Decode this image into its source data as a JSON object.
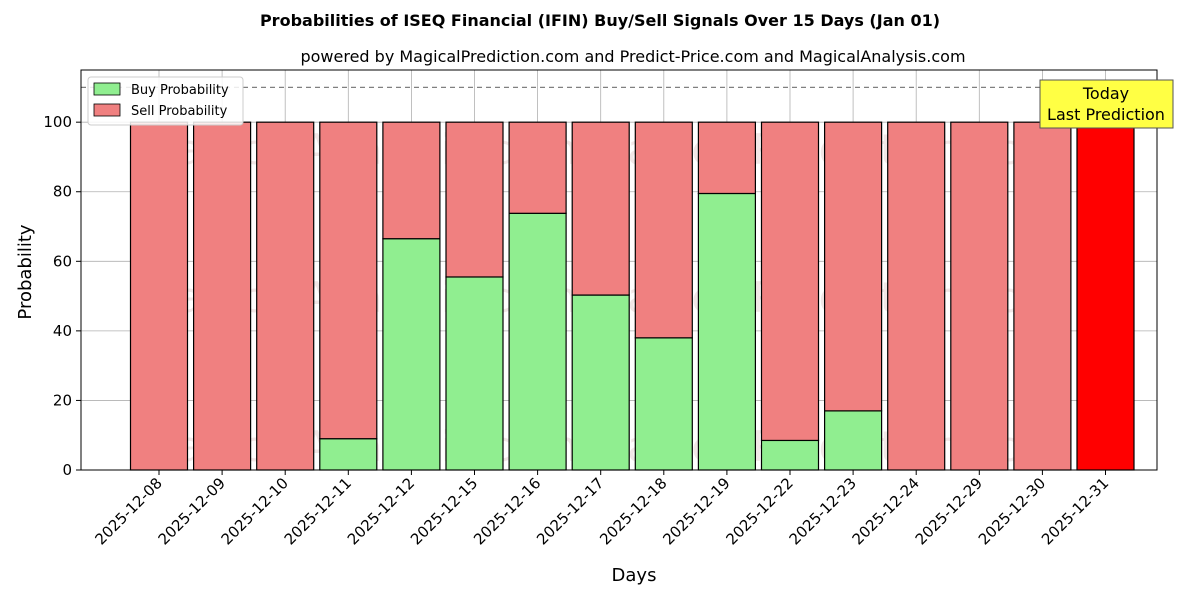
{
  "chart_data": {
    "type": "bar",
    "title": "Probabilities of ISEQ Financial (IFIN) Buy/Sell Signals Over 15 Days (Jan 01)",
    "subtitle": "powered by MagicalPrediction.com and Predict-Price.com and MagicalAnalysis.com",
    "xlabel": "Days",
    "ylabel": "Probability",
    "ylim": [
      0,
      115
    ],
    "yticks": [
      0,
      20,
      40,
      60,
      80,
      100
    ],
    "categories": [
      "2025-12-08",
      "2025-12-09",
      "2025-12-10",
      "2025-12-11",
      "2025-12-12",
      "2025-12-15",
      "2025-12-16",
      "2025-12-17",
      "2025-12-18",
      "2025-12-19",
      "2025-12-22",
      "2025-12-23",
      "2025-12-24",
      "2025-12-29",
      "2025-12-30",
      "2025-12-31"
    ],
    "series": [
      {
        "name": "Buy Probability",
        "color": "#90ee90",
        "values": [
          0,
          0,
          0,
          9,
          66.5,
          55.5,
          73.8,
          50.3,
          38,
          79.5,
          8.5,
          17,
          0,
          0,
          0,
          0
        ]
      },
      {
        "name": "Sell Probability",
        "color": "#f08080",
        "values": [
          100,
          100,
          100,
          91,
          33.5,
          44.5,
          26.2,
          49.7,
          62,
          20.5,
          91.5,
          83,
          100,
          100,
          100,
          100
        ]
      }
    ],
    "highlight": {
      "index": 15,
      "color": "#ff0000"
    },
    "reference_line": {
      "value": 110,
      "style": "dashed",
      "color": "#808080"
    },
    "annotation": {
      "line1": "Today",
      "line2": "Last Prediction",
      "color": "#ffff44"
    },
    "legend_position": "top-left",
    "grid": true,
    "watermark": "MagicalAnalysis.com    MagicalPrediction.com"
  }
}
